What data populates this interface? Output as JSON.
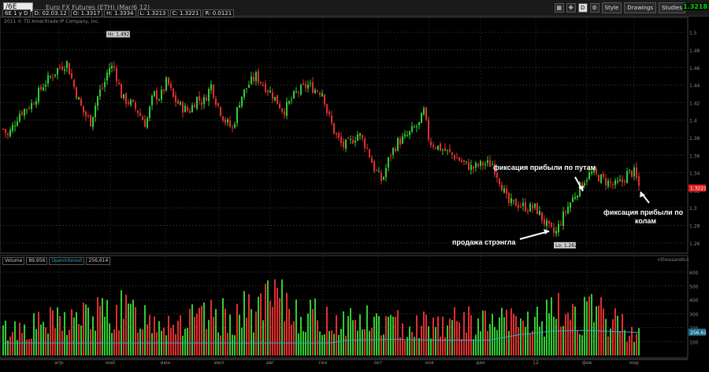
{
  "header": {
    "symbol": "/6E",
    "description": "Euro FX Futures (ETH) (Mar/6 12)",
    "ohlc": [
      "6E 1 y D",
      "D: 02.03.12",
      "O: 1.3317",
      "H: 1.3334",
      "L: 1.3213",
      "C: 1.3221",
      "R: 0.0121"
    ],
    "buttons": {
      "d": "D",
      "style": "Style",
      "drawings": "Drawings",
      "studies": "Studies"
    },
    "last_price": "1.3218",
    "copyright": "2011 © TD Ameritrade IP Company, Inc."
  },
  "annotations": {
    "strangle_sale": "продажа стрэнгла",
    "profit_puts": "фиксация прибыли по путам",
    "profit_calls_line1": "фиксация прибыли по",
    "profit_calls_line2": "колам"
  },
  "volume_panel": {
    "legend": [
      "Volume",
      "89,956",
      "OpenInterest",
      "256,614"
    ],
    "right_label": "<thousands>",
    "oi_last": "256.61"
  },
  "colors": {
    "up": "#33cc33",
    "down": "#e03030",
    "oi": "#33aacc",
    "bg": "#000000",
    "price_tag": "#e02020"
  },
  "chart_data": {
    "type": "candlestick",
    "price_axis": {
      "min": 1.25,
      "max": 1.51,
      "ticks": [
        "1.5",
        "1.48",
        "1.46",
        "1.44",
        "1.42",
        "1.4",
        "1.38",
        "1.36",
        "1.34",
        "1.32",
        "1.3",
        "1.28",
        "1.26"
      ]
    },
    "volume_axis": {
      "ticks": [
        "600",
        "500",
        "400",
        "300",
        "200",
        "100"
      ]
    },
    "x_labels": [
      "апр",
      "май",
      "июн",
      "июл",
      "авг",
      "сен",
      "окт",
      "ноя",
      "дек",
      "12",
      "фев",
      "мар"
    ],
    "high_label": "Hi: 1.4925",
    "low_label": "Lo: 1.2627",
    "last_price_tag": "1.3221",
    "oi_tag": "256.61",
    "anchors": [
      [
        0,
        1.395
      ],
      [
        10,
        1.382
      ],
      [
        25,
        1.408
      ],
      [
        40,
        1.418
      ],
      [
        55,
        1.44
      ],
      [
        75,
        1.46
      ],
      [
        85,
        1.465
      ],
      [
        95,
        1.435
      ],
      [
        105,
        1.41
      ],
      [
        115,
        1.398
      ],
      [
        125,
        1.43
      ],
      [
        132,
        1.44
      ],
      [
        138,
        1.46
      ],
      [
        145,
        1.46
      ],
      [
        155,
        1.425
      ],
      [
        165,
        1.42
      ],
      [
        175,
        1.41
      ],
      [
        185,
        1.395
      ],
      [
        195,
        1.43
      ],
      [
        203,
        1.425
      ],
      [
        212,
        1.445
      ],
      [
        220,
        1.425
      ],
      [
        230,
        1.415
      ],
      [
        240,
        1.41
      ],
      [
        250,
        1.425
      ],
      [
        258,
        1.42
      ],
      [
        268,
        1.44
      ],
      [
        275,
        1.42
      ],
      [
        285,
        1.4
      ],
      [
        295,
        1.39
      ],
      [
        305,
        1.425
      ],
      [
        315,
        1.44
      ],
      [
        325,
        1.45
      ],
      [
        335,
        1.44
      ],
      [
        345,
        1.43
      ],
      [
        360,
        1.41
      ],
      [
        375,
        1.43
      ],
      [
        390,
        1.44
      ],
      [
        400,
        1.435
      ],
      [
        410,
        1.432
      ],
      [
        415,
        1.41
      ],
      [
        425,
        1.385
      ],
      [
        435,
        1.37
      ],
      [
        445,
        1.375
      ],
      [
        455,
        1.385
      ],
      [
        465,
        1.37
      ],
      [
        475,
        1.345
      ],
      [
        485,
        1.33
      ],
      [
        495,
        1.36
      ],
      [
        505,
        1.375
      ],
      [
        515,
        1.38
      ],
      [
        525,
        1.39
      ],
      [
        532,
        1.395
      ],
      [
        538,
        1.41
      ],
      [
        545,
        1.375
      ],
      [
        555,
        1.37
      ],
      [
        565,
        1.365
      ],
      [
        575,
        1.36
      ],
      [
        590,
        1.35
      ],
      [
        600,
        1.345
      ],
      [
        612,
        1.35
      ],
      [
        625,
        1.35
      ],
      [
        635,
        1.33
      ],
      [
        645,
        1.305
      ],
      [
        655,
        1.305
      ],
      [
        670,
        1.3
      ],
      [
        680,
        1.3
      ],
      [
        690,
        1.285
      ],
      [
        698,
        1.275
      ],
      [
        705,
        1.27
      ],
      [
        712,
        1.285
      ],
      [
        720,
        1.3
      ],
      [
        730,
        1.315
      ],
      [
        740,
        1.33
      ],
      [
        750,
        1.34
      ],
      [
        760,
        1.335
      ],
      [
        770,
        1.33
      ],
      [
        780,
        1.325
      ],
      [
        790,
        1.33
      ],
      [
        797,
        1.34
      ],
      [
        805,
        1.34
      ],
      [
        812,
        1.322
      ]
    ],
    "volume_anchors": [
      [
        0,
        180
      ],
      [
        80,
        260
      ],
      [
        150,
        330
      ],
      [
        230,
        250
      ],
      [
        300,
        300
      ],
      [
        350,
        400
      ],
      [
        410,
        260
      ],
      [
        450,
        270
      ],
      [
        500,
        230
      ],
      [
        560,
        250
      ],
      [
        620,
        240
      ],
      [
        680,
        260
      ],
      [
        720,
        330
      ],
      [
        760,
        300
      ],
      [
        812,
        180
      ]
    ],
    "oi_anchors": [
      [
        0,
        90
      ],
      [
        420,
        90
      ],
      [
        440,
        110
      ],
      [
        500,
        115
      ],
      [
        560,
        110
      ],
      [
        620,
        110
      ],
      [
        660,
        150
      ],
      [
        700,
        175
      ],
      [
        740,
        180
      ],
      [
        790,
        170
      ],
      [
        812,
        165
      ]
    ]
  }
}
